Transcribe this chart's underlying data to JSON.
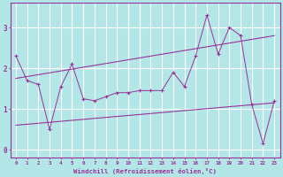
{
  "xlabel": "Windchill (Refroidissement éolien,°C)",
  "x": [
    0,
    1,
    2,
    3,
    4,
    5,
    6,
    7,
    8,
    9,
    10,
    11,
    12,
    13,
    14,
    15,
    16,
    17,
    18,
    19,
    20,
    21,
    22,
    23
  ],
  "main_line": [
    2.3,
    1.7,
    1.6,
    0.5,
    1.55,
    2.1,
    1.25,
    1.2,
    1.3,
    1.4,
    1.4,
    1.45,
    1.45,
    1.45,
    1.9,
    1.55,
    2.3,
    3.3,
    2.35,
    3.0,
    2.8,
    1.1,
    0.15,
    1.2
  ],
  "trend_upper_start": 1.75,
  "trend_upper_end": 2.8,
  "trend_lower_start": 0.6,
  "trend_lower_end": 1.15,
  "color": "#993399",
  "bg_color": "#b3e6e6",
  "grid_color": "#ffffff",
  "ylim": [
    -0.2,
    3.6
  ],
  "xlim": [
    -0.5,
    23.5
  ],
  "yticks": [
    0,
    1,
    2,
    3
  ],
  "xticks": [
    0,
    1,
    2,
    3,
    4,
    5,
    6,
    7,
    8,
    9,
    10,
    11,
    12,
    13,
    14,
    15,
    16,
    17,
    18,
    19,
    20,
    21,
    22,
    23
  ]
}
